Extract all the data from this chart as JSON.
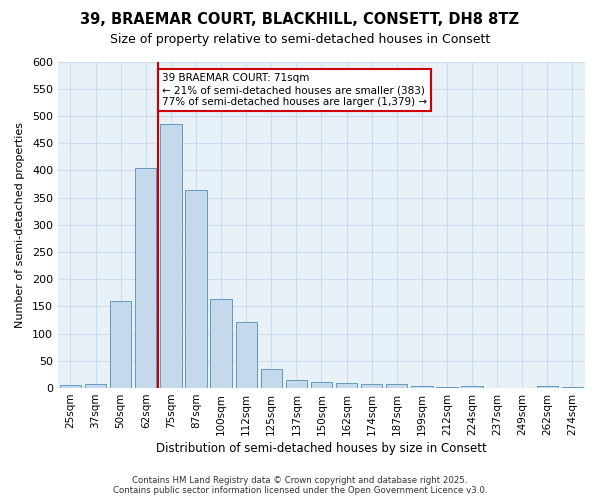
{
  "title1": "39, BRAEMAR COURT, BLACKHILL, CONSETT, DH8 8TZ",
  "title2": "Size of property relative to semi-detached houses in Consett",
  "xlabel": "Distribution of semi-detached houses by size in Consett",
  "ylabel": "Number of semi-detached properties",
  "bins": [
    "25sqm",
    "37sqm",
    "50sqm",
    "62sqm",
    "75sqm",
    "87sqm",
    "100sqm",
    "112sqm",
    "125sqm",
    "137sqm",
    "150sqm",
    "162sqm",
    "174sqm",
    "187sqm",
    "199sqm",
    "212sqm",
    "224sqm",
    "237sqm",
    "249sqm",
    "262sqm",
    "274sqm"
  ],
  "values": [
    5,
    8,
    160,
    405,
    485,
    363,
    163,
    122,
    35,
    15,
    12,
    10,
    8,
    8,
    4,
    2,
    4,
    0,
    0,
    3,
    2
  ],
  "bar_color": "#c5d9ed",
  "bar_edge_color": "#6699bb",
  "vline_x": 3.5,
  "property_size_label": "39 BRAEMAR COURT: 71sqm",
  "annotation_line1": "← 21% of semi-detached houses are smaller (383)",
  "annotation_line2": "77% of semi-detached houses are larger (1,379) →",
  "vline_color": "#cc0000",
  "annotation_box_color": "#ffffff",
  "annotation_box_edge": "#cc0000",
  "grid_color": "#ccddf0",
  "background_color": "#e8f0f8",
  "ylim": [
    0,
    600
  ],
  "yticks": [
    0,
    50,
    100,
    150,
    200,
    250,
    300,
    350,
    400,
    450,
    500,
    550,
    600
  ],
  "footer1": "Contains HM Land Registry data © Crown copyright and database right 2025.",
  "footer2": "Contains public sector information licensed under the Open Government Licence v3.0."
}
